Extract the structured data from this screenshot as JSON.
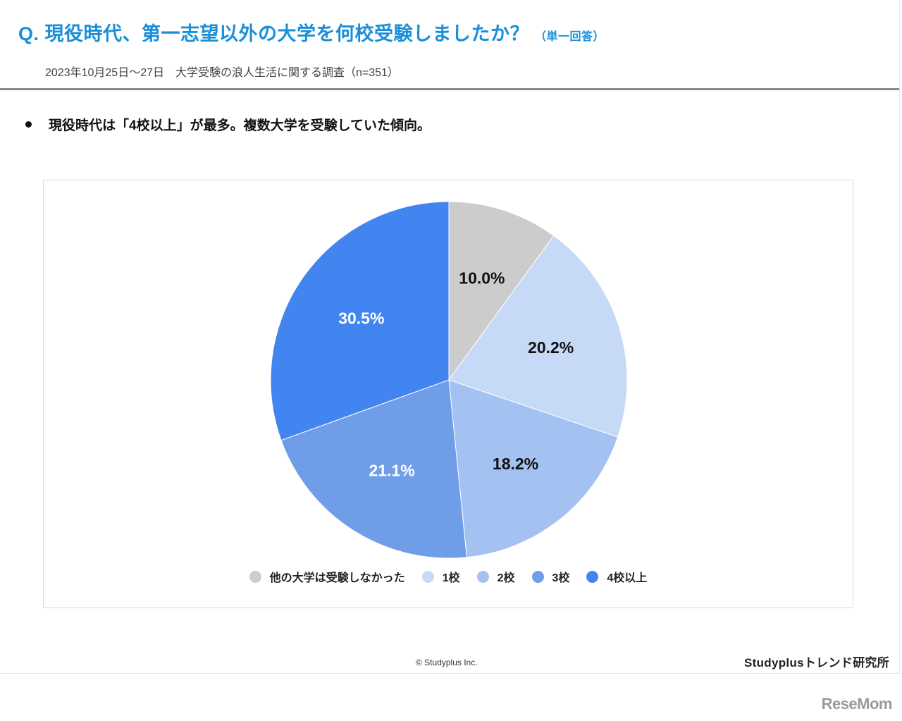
{
  "header": {
    "title": "Q. 現役時代、第一志望以外の大学を何校受験しましたか？",
    "title_note": "（単一回答）",
    "subtitle": "2023年10月25日～27日　大学受験の浪人生活に関する調査（n=351）"
  },
  "summary": {
    "bullet": "現役時代は「4校以上」が最多。複数大学を受験していた傾向。"
  },
  "chart_data": {
    "type": "pie",
    "title": "現役時代、第一志望以外の大学を何校受験しましたか？",
    "categories": [
      "他の大学は受験しなかった",
      "1校",
      "2校",
      "3校",
      "4校以上"
    ],
    "values": [
      10.0,
      20.2,
      18.2,
      21.1,
      30.5
    ],
    "labels": [
      "10.0%",
      "20.2%",
      "18.2%",
      "21.1%",
      "30.5%"
    ],
    "colors": [
      "#cccccc",
      "#c6d9f7",
      "#a3c2f1",
      "#6f9de8",
      "#4285f0"
    ],
    "label_colors": [
      "#111111",
      "#111111",
      "#111111",
      "#ffffff",
      "#ffffff"
    ],
    "start_angle_deg": 0,
    "direction": "clockwise",
    "legend_position": "bottom",
    "n": 351
  },
  "footer": {
    "copyright": "© Studyplus Inc.",
    "brand": "Studyplusトレンド研究所",
    "watermark": "ReseMom"
  }
}
